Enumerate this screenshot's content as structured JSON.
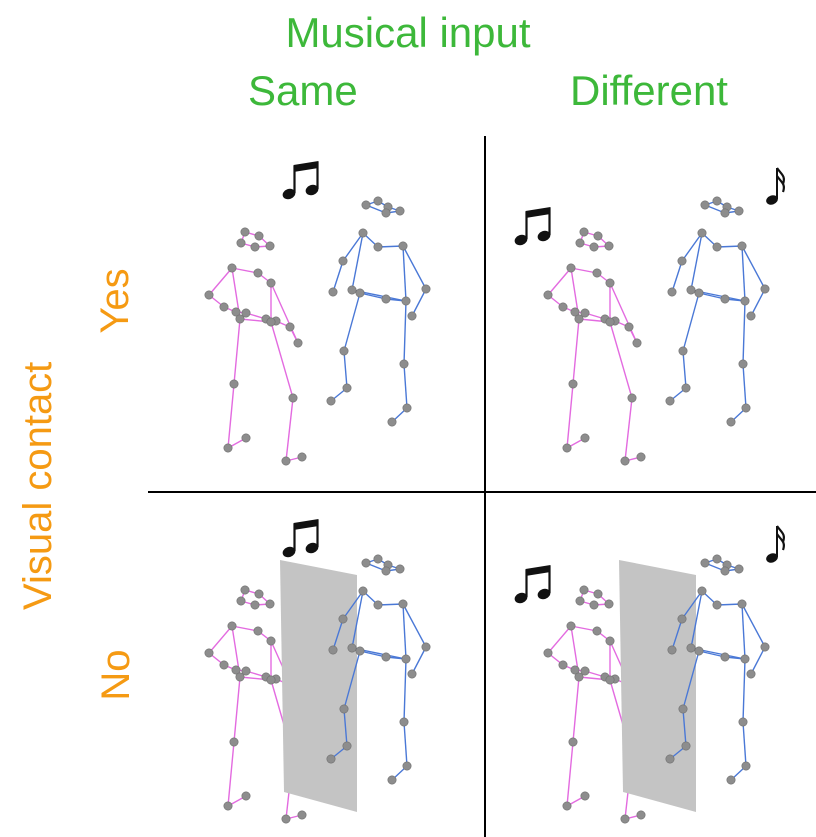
{
  "header": {
    "title": "Musical input",
    "col_same": "Same",
    "col_different": "Different"
  },
  "side": {
    "title": "Visual contact",
    "row_yes": "Yes",
    "row_no": "No"
  },
  "colors": {
    "header_text": "#3db83a",
    "side_text": "#f59a13",
    "dancer_left": "#e36be0",
    "dancer_right": "#4a78d6",
    "joint": "#8d8d8d",
    "screen": "#c4c4c4",
    "divider": "#000000"
  },
  "icons": [
    "beamed-eighth-notes-icon",
    "sixteenth-note-icon"
  ],
  "panels": [
    {
      "id": "yes-same",
      "visual_contact": "Yes",
      "musical_input": "Same",
      "screen": false
    },
    {
      "id": "yes-different",
      "visual_contact": "Yes",
      "musical_input": "Different",
      "screen": false
    },
    {
      "id": "no-same",
      "visual_contact": "No",
      "musical_input": "Same",
      "screen": true
    },
    {
      "id": "no-different",
      "visual_contact": "No",
      "musical_input": "Different",
      "screen": true
    }
  ]
}
